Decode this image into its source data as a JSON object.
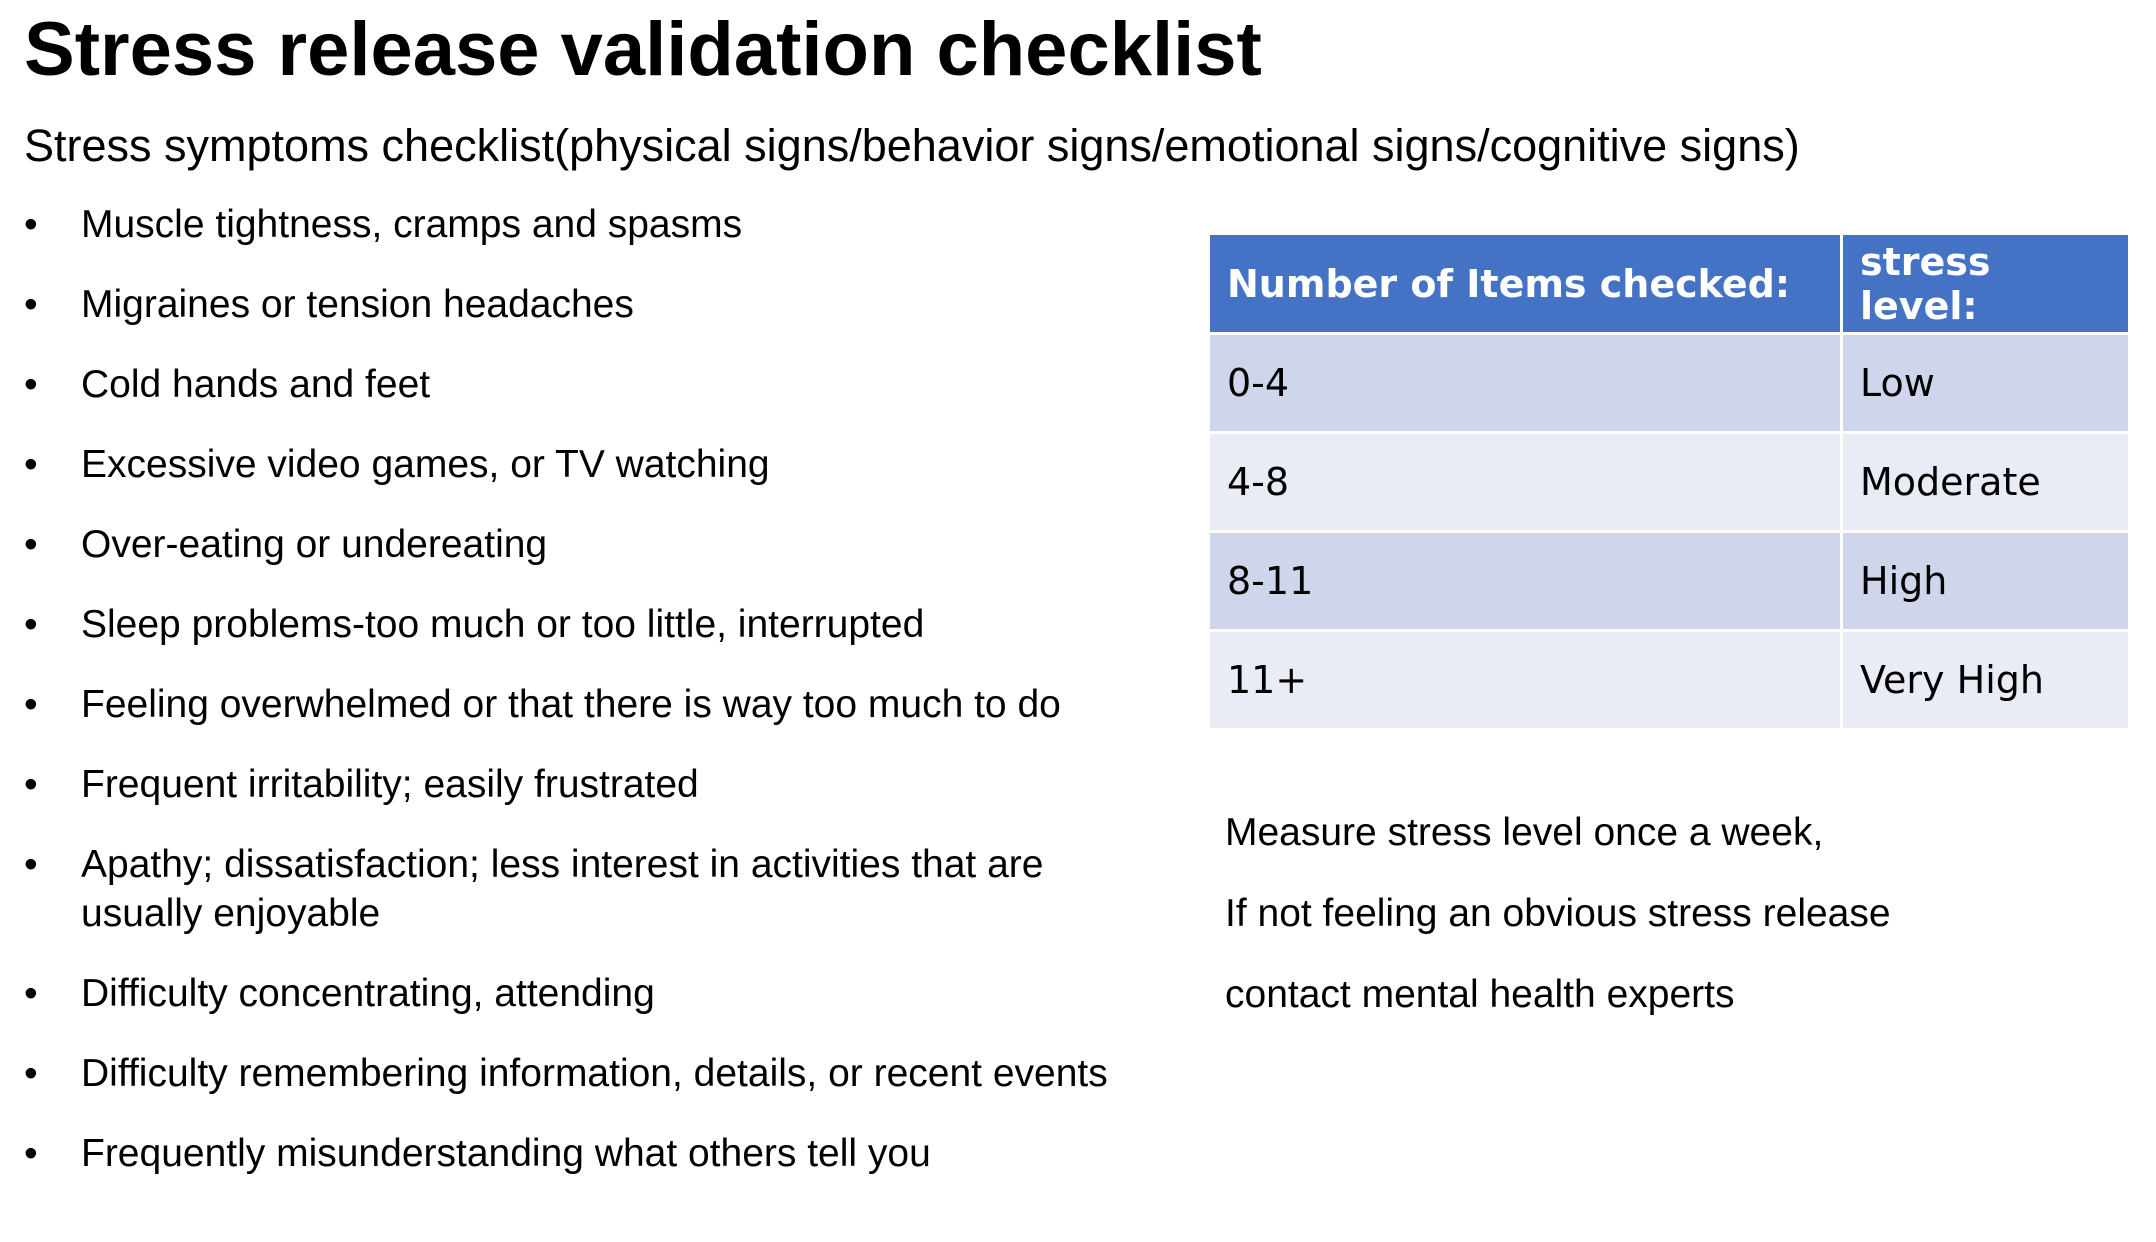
{
  "title": "Stress release validation checklist",
  "subtitle": "Stress symptoms checklist(physical signs/behavior signs/emotional signs/cognitive signs)",
  "symptoms": [
    "Muscle tightness, cramps and spasms",
    "Migraines or tension headaches",
    "Cold hands and feet",
    "Excessive video games, or TV watching",
    "Over-eating or undereating",
    "Sleep problems-too much or too little, interrupted",
    "Feeling overwhelmed or that there is way too much to do",
    "Frequent irritability; easily frustrated",
    "Apathy; dissatisfaction; less interest in activities that are usually enjoyable",
    "Difficulty concentrating, attending",
    "Difficulty remembering information, details, or recent events",
    "Frequently misunderstanding what others tell you"
  ],
  "table": {
    "headers": [
      "Number of Items checked:",
      "stress level:"
    ],
    "rows": [
      [
        "0-4",
        "Low"
      ],
      [
        "4-8",
        "Moderate"
      ],
      [
        "8-11",
        "High"
      ],
      [
        "11+",
        "Very High"
      ]
    ],
    "colors": {
      "header": "#4472c4",
      "row_odd": "#cfd5ea",
      "row_even": "#e9ebf5"
    }
  },
  "notes": [
    "Measure stress level once a week,",
    "If not feeling an obvious stress release",
    "contact mental health experts"
  ]
}
